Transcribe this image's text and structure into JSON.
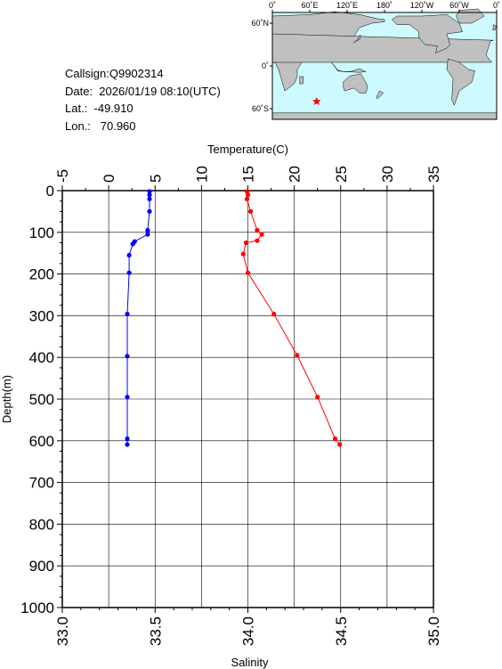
{
  "info": {
    "callsign": "Callsign:Q9902314",
    "date": "Date:  2026/01/19 08:10(UTC)",
    "lat": "Lat.:  -49.910",
    "lon": "Lon.:   70.960"
  },
  "map": {
    "top_labels": [
      "0˚",
      "60˚E",
      "120˚E",
      "180˚",
      "120˚W",
      "60˚W",
      "0˚"
    ],
    "left_labels": [
      "60˚N",
      "0˚",
      "60˚S"
    ],
    "ocean_color": "#cdfaff",
    "land_color": "#c0c0c0",
    "marker_color": "#ff0000",
    "marker": {
      "lon": 70.96,
      "lat": -49.91
    }
  },
  "chart_data": {
    "type": "line",
    "ylabel": "Depth(m)",
    "y_ticks": [
      "0",
      "100",
      "200",
      "300",
      "400",
      "500",
      "600",
      "700",
      "800",
      "900",
      "1000"
    ],
    "ylim": [
      0,
      1000
    ],
    "y_inverted": true,
    "top_axis": {
      "label": "Temperature(C)",
      "range": [
        -5,
        35
      ],
      "ticks": [
        "-5",
        "0",
        "5",
        "10",
        "15",
        "20",
        "25",
        "30",
        "35"
      ]
    },
    "bottom_axis": {
      "label": "Salinity",
      "range": [
        33.0,
        35.0
      ],
      "ticks": [
        "33.0",
        "33.5",
        "34.0",
        "34.5",
        "35.0"
      ]
    },
    "grid": true,
    "series": [
      {
        "axis": "top",
        "color": "#ff0000",
        "points": [
          {
            "x": 14.9,
            "y": 2
          },
          {
            "x": 15.0,
            "y": 10
          },
          {
            "x": 14.9,
            "y": 20
          },
          {
            "x": 15.3,
            "y": 50
          },
          {
            "x": 16.0,
            "y": 95
          },
          {
            "x": 16.5,
            "y": 105
          },
          {
            "x": 16.0,
            "y": 120
          },
          {
            "x": 14.8,
            "y": 125
          },
          {
            "x": 14.5,
            "y": 152
          },
          {
            "x": 15.0,
            "y": 197
          },
          {
            "x": 17.8,
            "y": 296
          },
          {
            "x": 20.3,
            "y": 395
          },
          {
            "x": 22.5,
            "y": 495
          },
          {
            "x": 24.4,
            "y": 595
          },
          {
            "x": 24.9,
            "y": 609
          }
        ]
      },
      {
        "axis": "bottom",
        "color": "#0000ff",
        "points": [
          {
            "x": 33.47,
            "y": 2
          },
          {
            "x": 33.47,
            "y": 10
          },
          {
            "x": 33.47,
            "y": 20
          },
          {
            "x": 33.47,
            "y": 50
          },
          {
            "x": 33.46,
            "y": 95
          },
          {
            "x": 33.46,
            "y": 105
          },
          {
            "x": 33.39,
            "y": 122
          },
          {
            "x": 33.38,
            "y": 128
          },
          {
            "x": 33.36,
            "y": 155
          },
          {
            "x": 33.36,
            "y": 197
          },
          {
            "x": 33.35,
            "y": 296
          },
          {
            "x": 33.35,
            "y": 397
          },
          {
            "x": 33.35,
            "y": 495
          },
          {
            "x": 33.35,
            "y": 595
          },
          {
            "x": 33.35,
            "y": 609
          }
        ]
      }
    ]
  }
}
